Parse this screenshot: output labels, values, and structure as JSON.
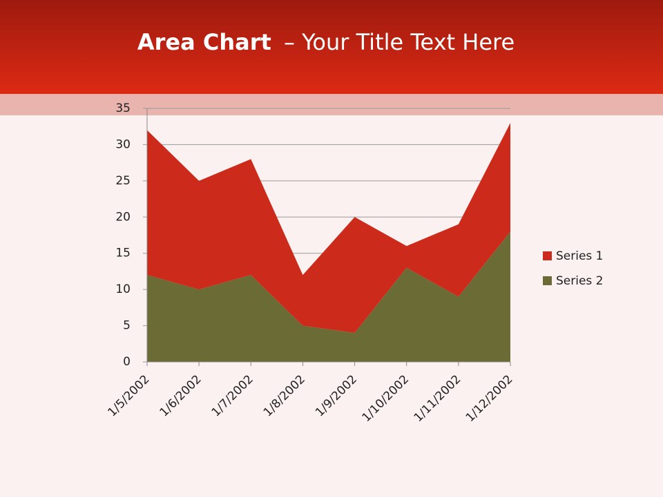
{
  "chart_data": {
    "type": "stacked-area",
    "title": [
      "Area Chart",
      "– Your Title Text Here"
    ],
    "categories": [
      "1/5/2002",
      "1/6/2002",
      "1/7/2002",
      "1/8/2002",
      "1/9/2002",
      "1/10/2002",
      "1/11/2002",
      "1/12/2002"
    ],
    "series": [
      {
        "name": "Series 1",
        "color": "#cc2a1a",
        "values": [
          20,
          15,
          16,
          7,
          16,
          3,
          10,
          15
        ]
      },
      {
        "name": "Series 2",
        "color": "#6b6b35",
        "values": [
          12,
          10,
          12,
          5,
          4,
          13,
          9,
          18
        ]
      }
    ],
    "ylim": [
      0,
      35
    ],
    "yticks": [
      0,
      5,
      10,
      15,
      20,
      25,
      30,
      35
    ],
    "grid": true,
    "legend": "right"
  }
}
